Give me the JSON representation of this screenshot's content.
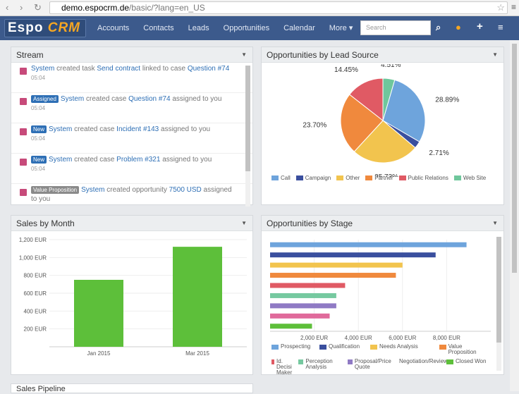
{
  "browser": {
    "url_domain": "demo.espocrm.de",
    "url_path": "/basic/?lang=en_US"
  },
  "logo": {
    "part1": "Espo",
    "part2": "CRM"
  },
  "nav": {
    "items": [
      "Accounts",
      "Contacts",
      "Leads",
      "Opportunities",
      "Calendar",
      "More ▾"
    ]
  },
  "search": {
    "placeholder": "Search"
  },
  "stream": {
    "title": "Stream",
    "items": [
      {
        "badge": "",
        "actor": "System",
        "t1": " created task ",
        "link1": "Send contract",
        "t2": " linked to case ",
        "link2": "Question #74",
        "t3": "",
        "time": "05:04"
      },
      {
        "badge": "Assigned",
        "actor": "System",
        "t1": " created case ",
        "link1": "Question #74",
        "t2": " assigned to you",
        "link2": "",
        "t3": "",
        "time": "05:04"
      },
      {
        "badge": "New",
        "actor": "System",
        "t1": " created case ",
        "link1": "Incident #143",
        "t2": " assigned to you",
        "link2": "",
        "t3": "",
        "time": "05:04"
      },
      {
        "badge": "New",
        "actor": "System",
        "t1": " created case ",
        "link1": "Problem #321",
        "t2": " assigned to you",
        "link2": "",
        "t3": "",
        "time": "05:04"
      },
      {
        "badge": "Value Proposition",
        "actor": "System",
        "t1": " created opportunity ",
        "link1": "7500 USD",
        "t2": " assigned",
        "link2": "",
        "t3": "",
        "time": "to you"
      }
    ]
  },
  "panels": {
    "lead_source": "Opportunities by Lead Source",
    "sales_month": "Sales by Month",
    "stage": "Opportunities by Stage",
    "bottom": "Sales Pipeline"
  },
  "colors": {
    "navbar": "#3c5a8c",
    "green": "#5dbf3a"
  },
  "chart_data": [
    {
      "type": "pie",
      "title": "Opportunities by Lead Source",
      "categories": [
        "Call",
        "Campaign",
        "Other",
        "Partner",
        "Public Relations",
        "Web Site"
      ],
      "values": [
        28.89,
        2.71,
        25.73,
        23.7,
        14.45,
        4.51
      ],
      "labels": [
        "28.89%",
        "2.71%",
        "25.73%",
        "23.70%",
        "14.45%",
        "4.51%"
      ],
      "colors": [
        "#6ea4dc",
        "#3a4f9e",
        "#f2c44e",
        "#f0893d",
        "#e05a64",
        "#6fc79c"
      ],
      "legend": "bottom"
    },
    {
      "type": "bar",
      "title": "Sales by Month",
      "categories": [
        "Jan 2015",
        "Mar 2015"
      ],
      "values": [
        750,
        1120
      ],
      "yticks": [
        "200 EUR",
        "400 EUR",
        "600 EUR",
        "800 EUR",
        "1,000 EUR",
        "1,200 EUR"
      ],
      "ylim": [
        0,
        1200
      ]
    },
    {
      "type": "bar",
      "title": "Opportunities by Stage",
      "categories": [
        "Prospecting",
        "Qualification",
        "Needs Analysis",
        "Value Proposition",
        "Id. Decision Makers",
        "Perception Analysis",
        "Proposal/Price Quote",
        "Negotiation/Review",
        "Closed Won"
      ],
      "values": [
        8900,
        7500,
        6000,
        5700,
        3400,
        3000,
        3000,
        2700,
        1900
      ],
      "colors": [
        "#6ea4dc",
        "#3a4f9e",
        "#f2c44e",
        "#f0893d",
        "#e05a64",
        "#76c9a0",
        "#8f7ac4",
        "#e06a9b",
        "#5dbf3a"
      ],
      "xticks": [
        "2,000 EUR",
        "4,000 EUR",
        "6,000 EUR",
        "8,000 EUR"
      ],
      "xlim": [
        0,
        10000
      ],
      "legend_labels": [
        "Prospecting",
        "Qualification",
        "Needs Analysis",
        "Value Proposition",
        "Id. Decisi Maker",
        "Perception Analysis",
        "Proposal/Price Quote",
        "Negotiation/Review",
        "Closed Won"
      ],
      "legend": "bottom"
    }
  ]
}
